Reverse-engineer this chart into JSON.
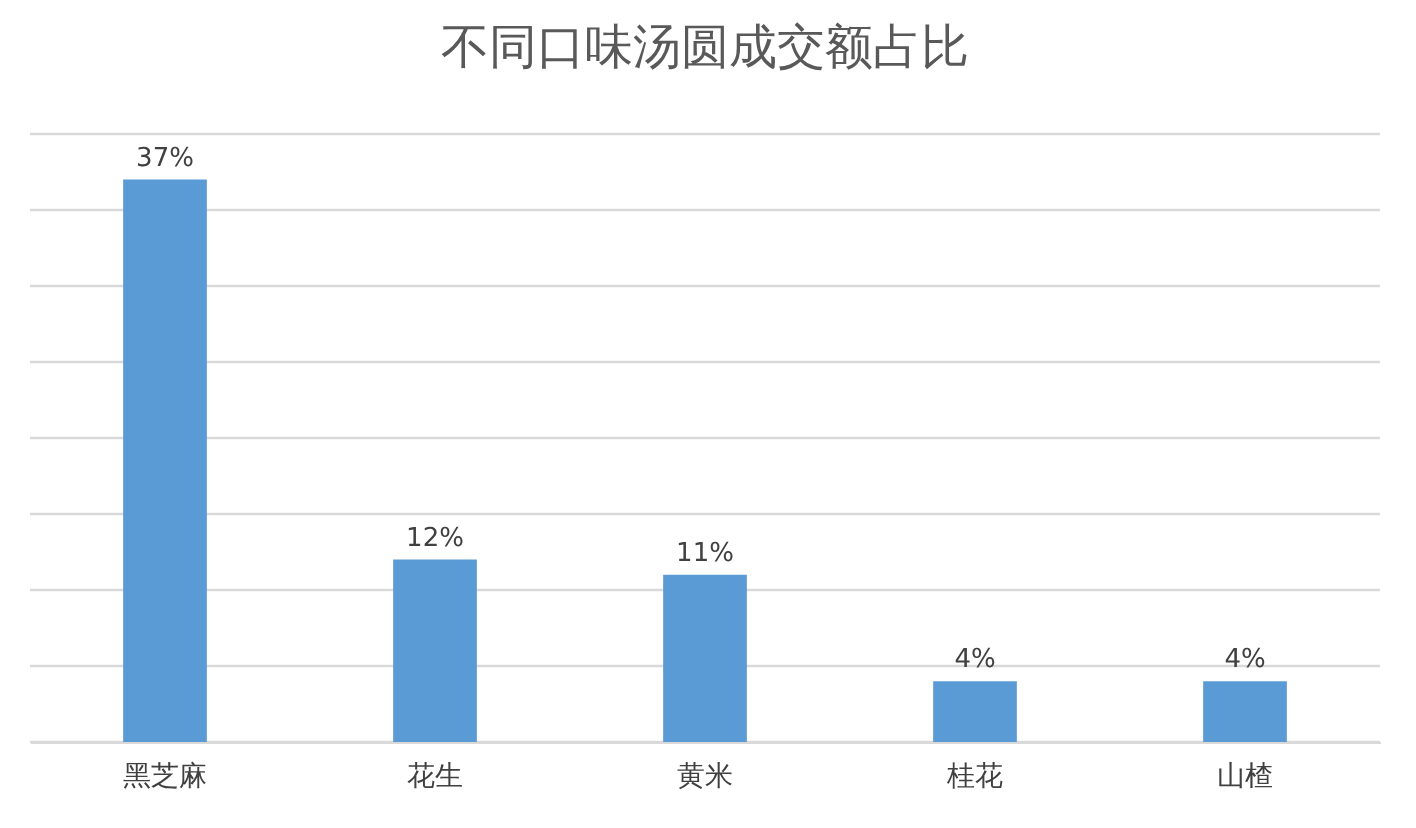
{
  "chart_data": {
    "type": "bar",
    "title": "不同口味汤圆成交额占比",
    "categories": [
      "黑芝麻",
      "花生",
      "黄米",
      "桂花",
      "山楂"
    ],
    "values": [
      37,
      12,
      11,
      4,
      4
    ],
    "value_labels": [
      "37%",
      "12%",
      "11%",
      "4%",
      "4%"
    ],
    "color": "#5b9bd5",
    "ylim": [
      0,
      40
    ],
    "yticks": [
      {
        "value": 0,
        "label": null
      },
      {
        "value": 5,
        "label": null
      },
      {
        "value": 10,
        "label": null
      },
      {
        "value": 15,
        "label": null
      },
      {
        "value": 20,
        "label": null
      },
      {
        "value": 25,
        "label": null
      },
      {
        "value": 30,
        "label": null
      },
      {
        "value": 35,
        "label": null
      },
      {
        "value": 40,
        "label": null
      }
    ],
    "grid": "y",
    "tick_labels": "x"
  }
}
